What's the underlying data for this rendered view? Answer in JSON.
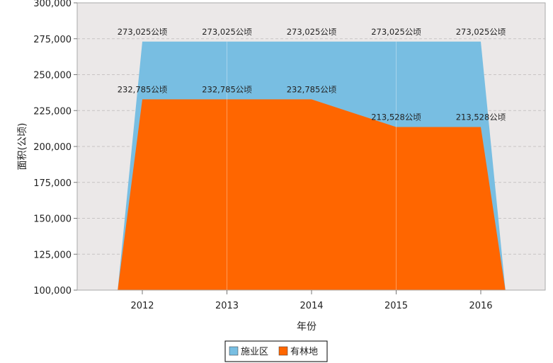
{
  "chart_data": {
    "type": "area",
    "xlabel": "年份",
    "ylabel": "面积(公顷)",
    "categories": [
      "2012",
      "2013",
      "2014",
      "2015",
      "2016"
    ],
    "ylim": [
      100000,
      300000
    ],
    "yticks": [
      100000,
      125000,
      150000,
      175000,
      200000,
      225000,
      250000,
      275000,
      300000
    ],
    "ytick_labels": [
      "100,000",
      "125,000",
      "150,000",
      "175,000",
      "200,000",
      "225,000",
      "250,000",
      "275,000",
      "300,000"
    ],
    "grid": true,
    "legend_position": "bottom-center",
    "series": [
      {
        "name": "施业区",
        "color": "#78bee2",
        "values": [
          273025,
          273025,
          273025,
          273025,
          273025
        ],
        "labels": [
          "273,025公顷",
          "273,025公顷",
          "273,025公顷",
          "273,025公顷",
          "273,025公顷"
        ]
      },
      {
        "name": "有林地",
        "color": "#ff6600",
        "values": [
          232785,
          232785,
          232785,
          213528,
          213528
        ],
        "labels": [
          "232,785公顷",
          "232,785公顷",
          "232,785公顷",
          "213,528公顷",
          "213,528公顷"
        ]
      }
    ]
  }
}
